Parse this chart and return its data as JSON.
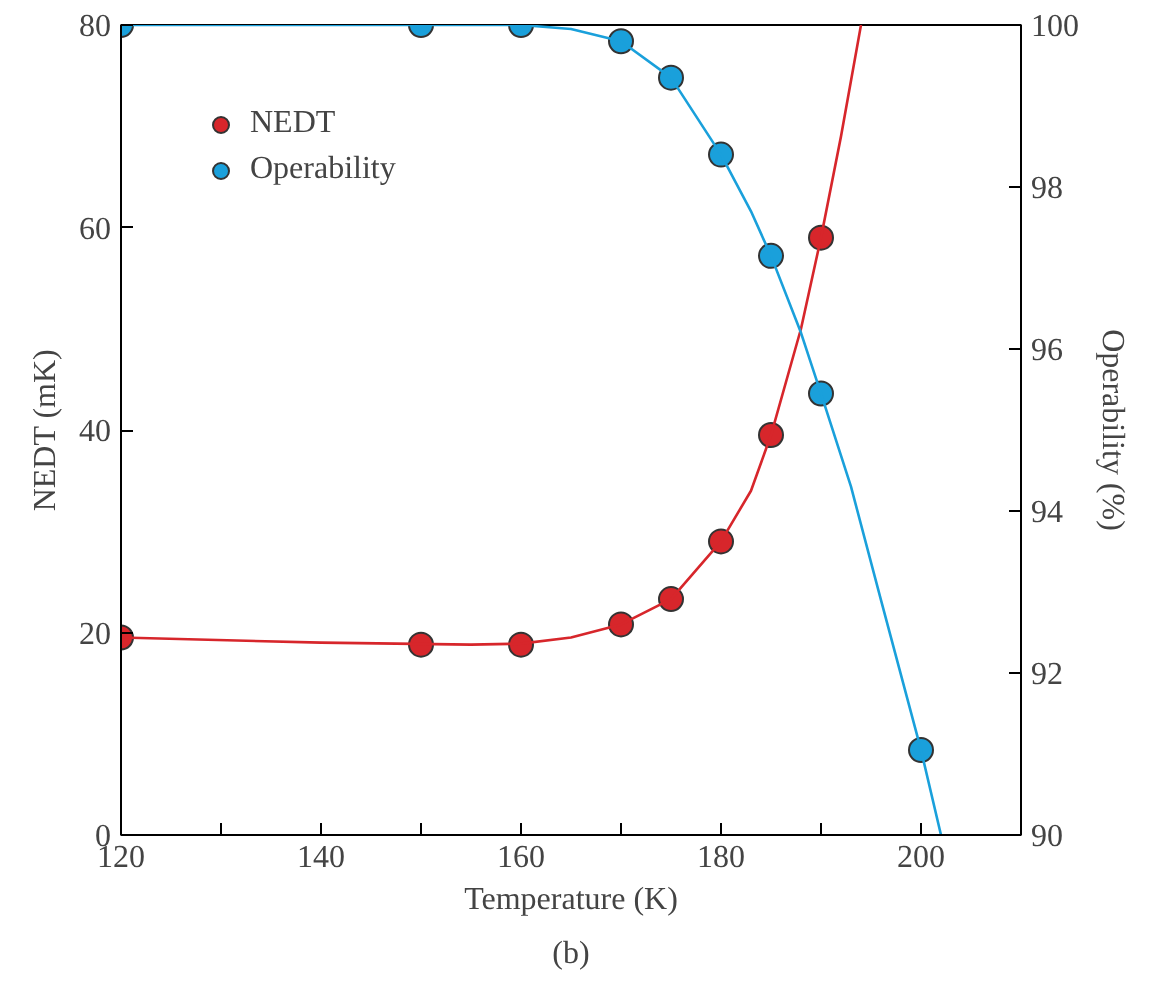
{
  "chart_data": {
    "type": "line",
    "xlabel": "Temperature (K)",
    "ylabel": "NEDT (mK)",
    "y2label": "Operability (%)",
    "annotations": [
      "(b)"
    ],
    "xlim": [
      120,
      210
    ],
    "xticks": [
      120,
      {
        "value": 130,
        "label": null
      },
      140,
      {
        "value": 150,
        "label": null
      },
      160,
      {
        "value": 170,
        "label": null
      },
      180,
      {
        "value": 190,
        "label": null
      },
      200
    ],
    "ylim": [
      0,
      80
    ],
    "yticks": [
      0,
      20,
      40,
      60,
      80
    ],
    "y2lim": [
      90,
      100
    ],
    "y2ticks": [
      90,
      92,
      94,
      96,
      98,
      100
    ],
    "grid": false,
    "legend": "top left",
    "series": [
      {
        "name": "NEDT",
        "type": "scatter",
        "marker": "circle",
        "color": "#d7262b",
        "x": [
          120,
          150,
          160,
          170,
          175,
          180,
          185,
          190
        ],
        "values": [
          19.5,
          18.8,
          18.8,
          20.8,
          23.3,
          29,
          39.5,
          59
        ]
      },
      {
        "name": "Operability",
        "type": "scatter",
        "marker": "circle",
        "color": "#1aa0db",
        "axis": "y2",
        "x": [
          120,
          150,
          160,
          170,
          175,
          180,
          185,
          190,
          200
        ],
        "values": [
          100,
          100,
          100,
          99.8,
          99.35,
          98.4,
          97.15,
          95.45,
          91.05
        ]
      },
      {
        "color": "#d7262b",
        "x": [
          120,
          140,
          155,
          160,
          165,
          170,
          175,
          180,
          183,
          185,
          188,
          190,
          192,
          194
        ],
        "values": [
          19.5,
          19.0,
          18.8,
          18.9,
          19.5,
          20.8,
          23.3,
          29,
          34,
          39.5,
          50,
          59,
          69,
          80
        ]
      },
      {
        "color": "#1aa0db",
        "axis": "y2",
        "x": [
          120,
          160,
          165,
          170,
          175,
          180,
          183,
          185,
          188,
          190,
          193,
          196,
          200,
          202
        ],
        "values": [
          100,
          100,
          99.95,
          99.8,
          99.35,
          98.4,
          97.7,
          97.15,
          96.2,
          95.45,
          94.3,
          92.9,
          91.05,
          90
        ]
      }
    ]
  }
}
